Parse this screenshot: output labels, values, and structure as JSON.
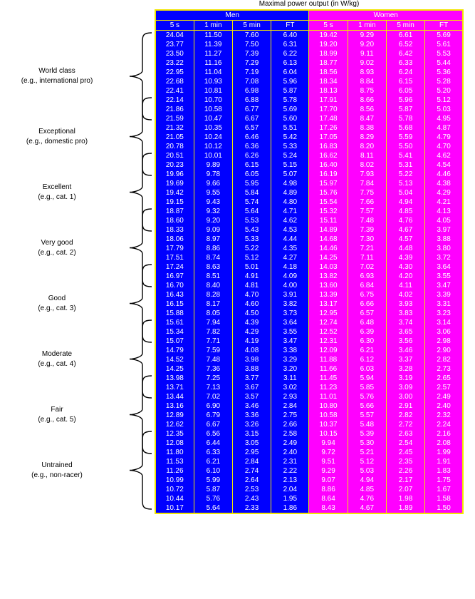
{
  "title": "Maximal power output (in W/kg)",
  "groups": {
    "men": "Men",
    "women": "Women"
  },
  "subheaders": {
    "men": [
      "5 s",
      "1 min",
      "5 min",
      "FT"
    ],
    "women": [
      "5 s",
      "1 min",
      "5 min",
      "FT"
    ]
  },
  "rows": [
    [
      "24.04",
      "11.50",
      "7.60",
      "6.40",
      "19.42",
      "9.29",
      "6.61",
      "5.69"
    ],
    [
      "23.77",
      "11.39",
      "7.50",
      "6.31",
      "19.20",
      "9.20",
      "6.52",
      "5.61"
    ],
    [
      "23.50",
      "11.27",
      "7.39",
      "6.22",
      "18.99",
      "9.11",
      "6.42",
      "5.53"
    ],
    [
      "23.22",
      "11.16",
      "7.29",
      "6.13",
      "18.77",
      "9.02",
      "6.33",
      "5.44"
    ],
    [
      "22.95",
      "11.04",
      "7.19",
      "6.04",
      "18.56",
      "8.93",
      "6.24",
      "5.36"
    ],
    [
      "22.68",
      "10.93",
      "7.08",
      "5.96",
      "18.34",
      "8.84",
      "6.15",
      "5.28"
    ],
    [
      "22.41",
      "10.81",
      "6.98",
      "5.87",
      "18.13",
      "8.75",
      "6.05",
      "5.20"
    ],
    [
      "22.14",
      "10.70",
      "6.88",
      "5.78",
      "17.91",
      "8.66",
      "5.96",
      "5.12"
    ],
    [
      "21.86",
      "10.58",
      "6.77",
      "5.69",
      "17.70",
      "8.56",
      "5.87",
      "5.03"
    ],
    [
      "21.59",
      "10.47",
      "6.67",
      "5.60",
      "17.48",
      "8.47",
      "5.78",
      "4.95"
    ],
    [
      "21.32",
      "10.35",
      "6.57",
      "5.51",
      "17.26",
      "8.38",
      "5.68",
      "4.87"
    ],
    [
      "21.05",
      "10.24",
      "6.46",
      "5.42",
      "17.05",
      "8.29",
      "5.59",
      "4.79"
    ],
    [
      "20.78",
      "10.12",
      "6.36",
      "5.33",
      "16.83",
      "8.20",
      "5.50",
      "4.70"
    ],
    [
      "20.51",
      "10.01",
      "6.26",
      "5.24",
      "16.62",
      "8.11",
      "5.41",
      "4.62"
    ],
    [
      "20.23",
      "9.89",
      "6.15",
      "5.15",
      "16.40",
      "8.02",
      "5.31",
      "4.54"
    ],
    [
      "19.96",
      "9.78",
      "6.05",
      "5.07",
      "16.19",
      "7.93",
      "5.22",
      "4.46"
    ],
    [
      "19.69",
      "9.66",
      "5.95",
      "4.98",
      "15.97",
      "7.84",
      "5.13",
      "4.38"
    ],
    [
      "19.42",
      "9.55",
      "5.84",
      "4.89",
      "15.76",
      "7.75",
      "5.04",
      "4.29"
    ],
    [
      "19.15",
      "9.43",
      "5.74",
      "4.80",
      "15.54",
      "7.66",
      "4.94",
      "4.21"
    ],
    [
      "18.87",
      "9.32",
      "5.64",
      "4.71",
      "15.32",
      "7.57",
      "4.85",
      "4.13"
    ],
    [
      "18.60",
      "9.20",
      "5.53",
      "4.62",
      "15.11",
      "7.48",
      "4.76",
      "4.05"
    ],
    [
      "18.33",
      "9.09",
      "5.43",
      "4.53",
      "14.89",
      "7.39",
      "4.67",
      "3.97"
    ],
    [
      "18.06",
      "8.97",
      "5.33",
      "4.44",
      "14.68",
      "7.30",
      "4.57",
      "3.88"
    ],
    [
      "17.79",
      "8.86",
      "5.22",
      "4.35",
      "14.46",
      "7.21",
      "4.48",
      "3.80"
    ],
    [
      "17.51",
      "8.74",
      "5.12",
      "4.27",
      "14.25",
      "7.11",
      "4.39",
      "3.72"
    ],
    [
      "17.24",
      "8.63",
      "5.01",
      "4.18",
      "14.03",
      "7.02",
      "4.30",
      "3.64"
    ],
    [
      "16.97",
      "8.51",
      "4.91",
      "4.09",
      "13.82",
      "6.93",
      "4.20",
      "3.55"
    ],
    [
      "16.70",
      "8.40",
      "4.81",
      "4.00",
      "13.60",
      "6.84",
      "4.11",
      "3.47"
    ],
    [
      "16.43",
      "8.28",
      "4.70",
      "3.91",
      "13.39",
      "6.75",
      "4.02",
      "3.39"
    ],
    [
      "16.15",
      "8.17",
      "4.60",
      "3.82",
      "13.17",
      "6.66",
      "3.93",
      "3.31"
    ],
    [
      "15.88",
      "8.05",
      "4.50",
      "3.73",
      "12.95",
      "6.57",
      "3.83",
      "3.23"
    ],
    [
      "15.61",
      "7.94",
      "4.39",
      "3.64",
      "12.74",
      "6.48",
      "3.74",
      "3.14"
    ],
    [
      "15.34",
      "7.82",
      "4.29",
      "3.55",
      "12.52",
      "6.39",
      "3.65",
      "3.06"
    ],
    [
      "15.07",
      "7.71",
      "4.19",
      "3.47",
      "12.31",
      "6.30",
      "3.56",
      "2.98"
    ],
    [
      "14.79",
      "7.59",
      "4.08",
      "3.38",
      "12.09",
      "6.21",
      "3.46",
      "2.90"
    ],
    [
      "14.52",
      "7.48",
      "3.98",
      "3.29",
      "11.88",
      "6.12",
      "3.37",
      "2.82"
    ],
    [
      "14.25",
      "7.36",
      "3.88",
      "3.20",
      "11.66",
      "6.03",
      "3.28",
      "2.73"
    ],
    [
      "13.98",
      "7.25",
      "3.77",
      "3.11",
      "11.45",
      "5.94",
      "3.19",
      "2.65"
    ],
    [
      "13.71",
      "7.13",
      "3.67",
      "3.02",
      "11.23",
      "5.85",
      "3.09",
      "2.57"
    ],
    [
      "13.44",
      "7.02",
      "3.57",
      "2.93",
      "11.01",
      "5.76",
      "3.00",
      "2.49"
    ],
    [
      "13.16",
      "6.90",
      "3.46",
      "2.84",
      "10.80",
      "5.66",
      "2.91",
      "2.40"
    ],
    [
      "12.89",
      "6.79",
      "3.36",
      "2.75",
      "10.58",
      "5.57",
      "2.82",
      "2.32"
    ],
    [
      "12.62",
      "6.67",
      "3.26",
      "2.66",
      "10.37",
      "5.48",
      "2.72",
      "2.24"
    ],
    [
      "12.35",
      "6.56",
      "3.15",
      "2.58",
      "10.15",
      "5.39",
      "2.63",
      "2.16"
    ],
    [
      "12.08",
      "6.44",
      "3.05",
      "2.49",
      "9.94",
      "5.30",
      "2.54",
      "2.08"
    ],
    [
      "11.80",
      "6.33",
      "2.95",
      "2.40",
      "9.72",
      "5.21",
      "2.45",
      "1.99"
    ],
    [
      "11.53",
      "6.21",
      "2.84",
      "2.31",
      "9.51",
      "5.12",
      "2.35",
      "1.91"
    ],
    [
      "11.26",
      "6.10",
      "2.74",
      "2.22",
      "9.29",
      "5.03",
      "2.26",
      "1.83"
    ],
    [
      "10.99",
      "5.99",
      "2.64",
      "2.13",
      "9.07",
      "4.94",
      "2.17",
      "1.75"
    ],
    [
      "10.72",
      "5.87",
      "2.53",
      "2.04",
      "8.86",
      "4.85",
      "2.07",
      "1.67"
    ],
    [
      "10.44",
      "5.76",
      "2.43",
      "1.95",
      "8.64",
      "4.76",
      "1.98",
      "1.58"
    ],
    [
      "10.17",
      "5.64",
      "2.33",
      "1.86",
      "8.43",
      "4.67",
      "1.89",
      "1.50"
    ]
  ],
  "categories": [
    {
      "name": "World class",
      "example": "(e.g., international pro)",
      "from": 0,
      "to": 9
    },
    {
      "name": "Exceptional",
      "example": "(e.g., domestic pro)",
      "from": 7,
      "to": 15
    },
    {
      "name": "Excellent",
      "example": "(e.g., cat. 1)",
      "from": 13,
      "to": 21
    },
    {
      "name": "Very good",
      "example": "(e.g., cat. 2)",
      "from": 19,
      "to": 27
    },
    {
      "name": "Good",
      "example": "(e.g., cat. 3)",
      "from": 25,
      "to": 33
    },
    {
      "name": "Moderate",
      "example": "(e.g., cat. 4)",
      "from": 31,
      "to": 39
    },
    {
      "name": "Fair",
      "example": "(e.g., cat. 5)",
      "from": 37,
      "to": 45
    },
    {
      "name": "Untrained",
      "example": "(e.g., non-racer)",
      "from": 43,
      "to": 51
    }
  ],
  "colors": {
    "men": "#0000ff",
    "women": "#ff00ff",
    "grid": "#f2e600",
    "text": "#ffffff"
  }
}
